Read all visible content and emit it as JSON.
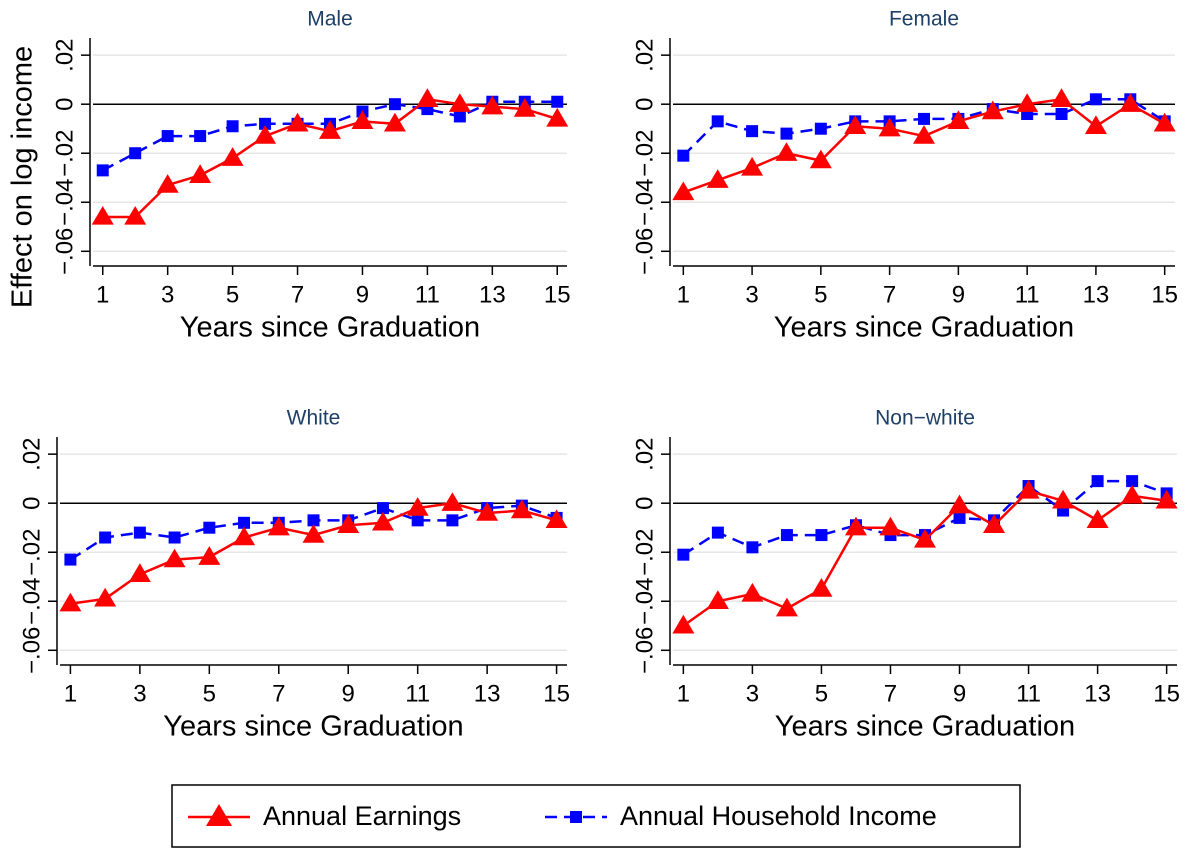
{
  "chart_data": [
    {
      "type": "line",
      "title": "Male",
      "xlabel": "Years since Graduation",
      "ylabel": "Effect on log income",
      "x": [
        1,
        2,
        3,
        4,
        5,
        6,
        7,
        8,
        9,
        10,
        11,
        12,
        13,
        14,
        15
      ],
      "xlim": [
        0.7,
        15.3
      ],
      "xticks": [
        1,
        3,
        5,
        7,
        9,
        11,
        13,
        15
      ],
      "ylim": [
        -0.066,
        0.027
      ],
      "yticks": [
        {
          "value": -0.06,
          "label": "−.06"
        },
        {
          "value": -0.04,
          "label": "−.04"
        },
        {
          "value": -0.02,
          "label": "−.02"
        },
        0,
        {
          "value": 0.02,
          "label": ".02"
        }
      ],
      "grid": true,
      "hline": 0,
      "series": [
        {
          "name": "Annual Earnings",
          "color": "#ff0000",
          "marker": "triangle",
          "values": [
            -0.046,
            -0.046,
            -0.033,
            -0.029,
            -0.022,
            -0.013,
            -0.008,
            -0.011,
            -0.007,
            -0.008,
            0.002,
            0.0,
            -0.001,
            -0.002,
            -0.006
          ]
        },
        {
          "name": "Annual Household Income",
          "color": "#0000ff",
          "marker": "square",
          "dashed": true,
          "values": [
            -0.027,
            -0.02,
            -0.013,
            -0.013,
            -0.009,
            -0.008,
            -0.008,
            -0.008,
            -0.003,
            0.0,
            -0.002,
            -0.005,
            0.001,
            0.001,
            0.001
          ]
        }
      ]
    },
    {
      "type": "line",
      "title": "Female",
      "xlabel": "Years since Graduation",
      "x": [
        1,
        2,
        3,
        4,
        5,
        6,
        7,
        8,
        9,
        10,
        11,
        12,
        13,
        14,
        15
      ],
      "xlim": [
        0.7,
        15.3
      ],
      "xticks": [
        1,
        3,
        5,
        7,
        9,
        11,
        13,
        15
      ],
      "ylim": [
        -0.066,
        0.027
      ],
      "yticks": [
        {
          "value": -0.06,
          "label": "−.06"
        },
        {
          "value": -0.04,
          "label": "−.04"
        },
        {
          "value": -0.02,
          "label": "−.02"
        },
        0,
        {
          "value": 0.02,
          "label": ".02"
        }
      ],
      "grid": true,
      "hline": 0,
      "series": [
        {
          "name": "Annual Earnings",
          "color": "#ff0000",
          "marker": "triangle",
          "values": [
            -0.036,
            -0.031,
            -0.026,
            -0.02,
            -0.023,
            -0.009,
            -0.01,
            -0.013,
            -0.007,
            -0.003,
            0.0,
            0.002,
            -0.009,
            0.0,
            -0.008
          ]
        },
        {
          "name": "Annual Household Income",
          "color": "#0000ff",
          "marker": "square",
          "dashed": true,
          "values": [
            -0.021,
            -0.007,
            -0.011,
            -0.012,
            -0.01,
            -0.007,
            -0.007,
            -0.006,
            -0.006,
            -0.002,
            -0.004,
            -0.004,
            0.002,
            0.002,
            -0.007
          ]
        }
      ]
    },
    {
      "type": "line",
      "title": "White",
      "xlabel": "Years since Graduation",
      "x": [
        1,
        2,
        3,
        4,
        5,
        6,
        7,
        8,
        9,
        10,
        11,
        12,
        13,
        14,
        15
      ],
      "xlim": [
        0.7,
        15.3
      ],
      "xticks": [
        1,
        3,
        5,
        7,
        9,
        11,
        13,
        15
      ],
      "ylim": [
        -0.066,
        0.027
      ],
      "yticks": [
        {
          "value": -0.06,
          "label": "−.06"
        },
        {
          "value": -0.04,
          "label": "−.04"
        },
        {
          "value": -0.02,
          "label": "−.02"
        },
        0,
        {
          "value": 0.02,
          "label": ".02"
        }
      ],
      "grid": true,
      "hline": 0,
      "series": [
        {
          "name": "Annual Earnings",
          "color": "#ff0000",
          "marker": "triangle",
          "values": [
            -0.041,
            -0.039,
            -0.029,
            -0.023,
            -0.022,
            -0.014,
            -0.01,
            -0.013,
            -0.009,
            -0.008,
            -0.002,
            0.0,
            -0.004,
            -0.003,
            -0.007
          ]
        },
        {
          "name": "Annual Household Income",
          "color": "#0000ff",
          "marker": "square",
          "dashed": true,
          "values": [
            -0.023,
            -0.014,
            -0.012,
            -0.014,
            -0.01,
            -0.008,
            -0.008,
            -0.007,
            -0.007,
            -0.002,
            -0.007,
            -0.007,
            -0.002,
            -0.001,
            -0.006
          ]
        }
      ]
    },
    {
      "type": "line",
      "title": "Non−white",
      "xlabel": "Years since Graduation",
      "x": [
        1,
        2,
        3,
        4,
        5,
        6,
        7,
        8,
        9,
        10,
        11,
        12,
        13,
        14,
        15
      ],
      "xlim": [
        0.7,
        15.3
      ],
      "xticks": [
        1,
        3,
        5,
        7,
        9,
        11,
        13,
        15
      ],
      "ylim": [
        -0.066,
        0.027
      ],
      "yticks": [
        {
          "value": -0.06,
          "label": "−.06"
        },
        {
          "value": -0.04,
          "label": "−.04"
        },
        {
          "value": -0.02,
          "label": "−.02"
        },
        0,
        {
          "value": 0.02,
          "label": ".02"
        }
      ],
      "grid": true,
      "hline": 0,
      "series": [
        {
          "name": "Annual Earnings",
          "color": "#ff0000",
          "marker": "triangle",
          "values": [
            -0.05,
            -0.04,
            -0.037,
            -0.043,
            -0.035,
            -0.01,
            -0.01,
            -0.015,
            -0.001,
            -0.009,
            0.005,
            0.001,
            -0.007,
            0.003,
            0.001
          ]
        },
        {
          "name": "Annual Household Income",
          "color": "#0000ff",
          "marker": "square",
          "dashed": true,
          "values": [
            -0.021,
            -0.012,
            -0.018,
            -0.013,
            -0.013,
            -0.009,
            -0.013,
            -0.013,
            -0.006,
            -0.007,
            0.007,
            -0.003,
            0.009,
            0.009,
            0.004
          ]
        }
      ]
    }
  ]
}
